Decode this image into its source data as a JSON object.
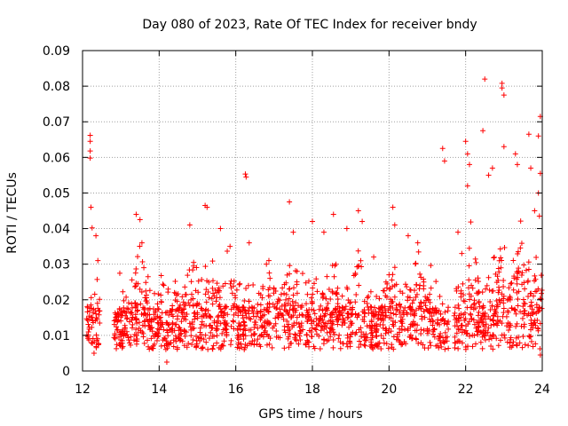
{
  "chart_data": {
    "type": "scatter",
    "title": "Day 080 of 2023, Rate Of TEC Index for receiver bndy",
    "xlabel": "GPS time / hours",
    "ylabel": "ROTI / TECUs",
    "xlim": [
      12,
      24
    ],
    "ylim": [
      0,
      0.09
    ],
    "xticks": [
      12,
      14,
      16,
      18,
      20,
      22,
      24
    ],
    "xtick_labels": [
      "12",
      "14",
      "16",
      "18",
      "20",
      "22",
      "24"
    ],
    "yticks": [
      0,
      0.01,
      0.02,
      0.03,
      0.04,
      0.05,
      0.06,
      0.07,
      0.08,
      0.09
    ],
    "ytick_labels": [
      "0",
      "0.01",
      "0.02",
      "0.03",
      "0.04",
      "0.05",
      "0.06",
      "0.07",
      "0.08",
      "0.09"
    ],
    "grid": true,
    "marker": "+",
    "color": "#ff0000",
    "series": [
      {
        "name": "ROTI",
        "points": [
          [
            12.2,
            0.0662
          ],
          [
            12.2,
            0.0645
          ],
          [
            12.2,
            0.0618
          ],
          [
            12.2,
            0.0598
          ],
          [
            12.22,
            0.046
          ],
          [
            12.25,
            0.0402
          ],
          [
            12.3,
            0.005
          ],
          [
            12.35,
            0.038
          ],
          [
            12.4,
            0.031
          ],
          [
            13.4,
            0.044
          ],
          [
            13.5,
            0.0425
          ],
          [
            13.55,
            0.036
          ],
          [
            13.6,
            0.029
          ],
          [
            14.2,
            0.0025
          ],
          [
            14.4,
            0.022
          ],
          [
            14.8,
            0.041
          ],
          [
            14.9,
            0.0305
          ],
          [
            15.2,
            0.0465
          ],
          [
            15.25,
            0.046
          ],
          [
            15.6,
            0.04
          ],
          [
            15.85,
            0.035
          ],
          [
            16.25,
            0.0553
          ],
          [
            16.27,
            0.0545
          ],
          [
            16.35,
            0.036
          ],
          [
            16.8,
            0.03
          ],
          [
            17.4,
            0.0475
          ],
          [
            17.5,
            0.039
          ],
          [
            17.6,
            0.028
          ],
          [
            18.0,
            0.042
          ],
          [
            18.3,
            0.039
          ],
          [
            18.55,
            0.044
          ],
          [
            18.9,
            0.04
          ],
          [
            19.2,
            0.045
          ],
          [
            19.3,
            0.042
          ],
          [
            19.6,
            0.032
          ],
          [
            20.1,
            0.046
          ],
          [
            20.15,
            0.041
          ],
          [
            20.5,
            0.038
          ],
          [
            20.75,
            0.036
          ],
          [
            21.4,
            0.0625
          ],
          [
            21.45,
            0.059
          ],
          [
            21.8,
            0.039
          ],
          [
            21.9,
            0.033
          ],
          [
            22.0,
            0.0645
          ],
          [
            22.05,
            0.061
          ],
          [
            22.1,
            0.058
          ],
          [
            22.05,
            0.052
          ],
          [
            22.45,
            0.0675
          ],
          [
            22.5,
            0.082
          ],
          [
            22.6,
            0.055
          ],
          [
            22.7,
            0.057
          ],
          [
            22.95,
            0.0808
          ],
          [
            22.95,
            0.0795
          ],
          [
            23.0,
            0.0775
          ],
          [
            23.0,
            0.063
          ],
          [
            23.3,
            0.061
          ],
          [
            23.35,
            0.058
          ],
          [
            23.65,
            0.0665
          ],
          [
            23.7,
            0.057
          ],
          [
            23.95,
            0.0715
          ],
          [
            23.9,
            0.066
          ],
          [
            23.95,
            0.0555
          ],
          [
            23.9,
            0.05
          ],
          [
            23.8,
            0.045
          ],
          [
            23.95,
            0.0045
          ]
        ]
      }
    ],
    "bulk_envelope": {
      "note": "dense point cloud: baseline ~0.005 to ~0.025 with bursts up to ~0.04",
      "gaps_hours": [
        [
          12.45,
          12.8
        ],
        [
          17.75,
          17.82
        ],
        [
          21.55,
          21.7
        ]
      ],
      "active_ranges_hours": [
        [
          12.1,
          12.45
        ],
        [
          12.8,
          17.75
        ],
        [
          17.82,
          21.55
        ],
        [
          21.7,
          24.0
        ]
      ]
    }
  }
}
